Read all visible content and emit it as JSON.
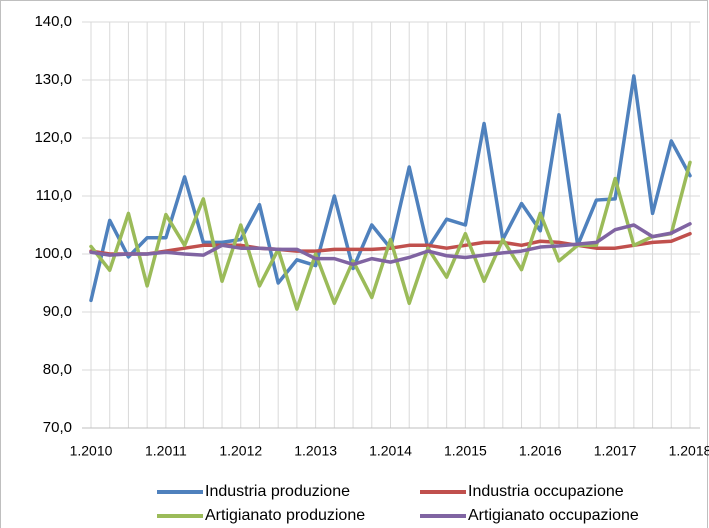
{
  "chart_data": {
    "type": "line",
    "categories": [
      "1.2010",
      null,
      null,
      null,
      "1.2011",
      null,
      null,
      null,
      "1.2012",
      null,
      null,
      null,
      "1.2013",
      null,
      null,
      null,
      "1.2014",
      null,
      null,
      null,
      "1.2015",
      null,
      null,
      null,
      "1.2016",
      null,
      null,
      null,
      "1.2017",
      null,
      null,
      null,
      "1.2018"
    ],
    "series": [
      {
        "name": "Industria produzione",
        "color": "#4f81bd",
        "values": [
          92,
          105.8,
          99.5,
          102.8,
          102.8,
          113.3,
          102,
          102,
          102.5,
          108.5,
          95,
          99,
          98,
          110,
          97.5,
          105,
          101,
          115,
          101,
          106,
          105,
          122.5,
          102.5,
          108.7,
          104,
          124,
          101.5,
          109.3,
          109.5,
          130.7,
          107,
          119.5,
          113.5
        ]
      },
      {
        "name": "Industria occupazione",
        "color": "#c0504d",
        "values": [
          100.5,
          100,
          100,
          100,
          100.5,
          101,
          101.5,
          101.5,
          101.5,
          101,
          100.8,
          100.5,
          100.5,
          100.8,
          100.8,
          100.8,
          101,
          101.5,
          101.5,
          101,
          101.5,
          102,
          102,
          101.5,
          102.2,
          102,
          101.5,
          101,
          101,
          101.5,
          102,
          102.2,
          103.5
        ]
      },
      {
        "name": "Artigianato produzione",
        "color": "#9bbb59",
        "values": [
          101.3,
          97.2,
          107,
          94.5,
          106.8,
          101.5,
          109.5,
          95.3,
          105,
          94.5,
          100.8,
          90.5,
          100,
          91.5,
          98.8,
          92.5,
          102.5,
          91.5,
          101,
          96,
          103.5,
          95.3,
          102.5,
          97.3,
          107,
          98.8,
          101.5,
          101.5,
          113,
          101.5,
          103,
          103.5,
          115.8
        ]
      },
      {
        "name": "Artigianato occupazione",
        "color": "#8064a2",
        "values": [
          100.3,
          99.8,
          100,
          100,
          100.3,
          100,
          99.8,
          101.5,
          101,
          101,
          100.8,
          100.8,
          99.2,
          99.2,
          98.2,
          99.2,
          98.6,
          99.4,
          100.5,
          99.7,
          99.4,
          99.8,
          100.2,
          100.5,
          101.2,
          101.4,
          101.7,
          102,
          104.2,
          105,
          103,
          103.6,
          105.2
        ]
      }
    ],
    "ylim": [
      70,
      140
    ],
    "yticks": [
      {
        "value": 70,
        "label": "70,0"
      },
      {
        "value": 80,
        "label": "80,0"
      },
      {
        "value": 90,
        "label": "90,0"
      },
      {
        "value": 100,
        "label": "100,0"
      },
      {
        "value": 110,
        "label": "110,0"
      },
      {
        "value": 120,
        "label": "120,0"
      },
      {
        "value": 130,
        "label": "130,0"
      },
      {
        "value": 140,
        "label": "140,0"
      }
    ],
    "grid": true
  }
}
